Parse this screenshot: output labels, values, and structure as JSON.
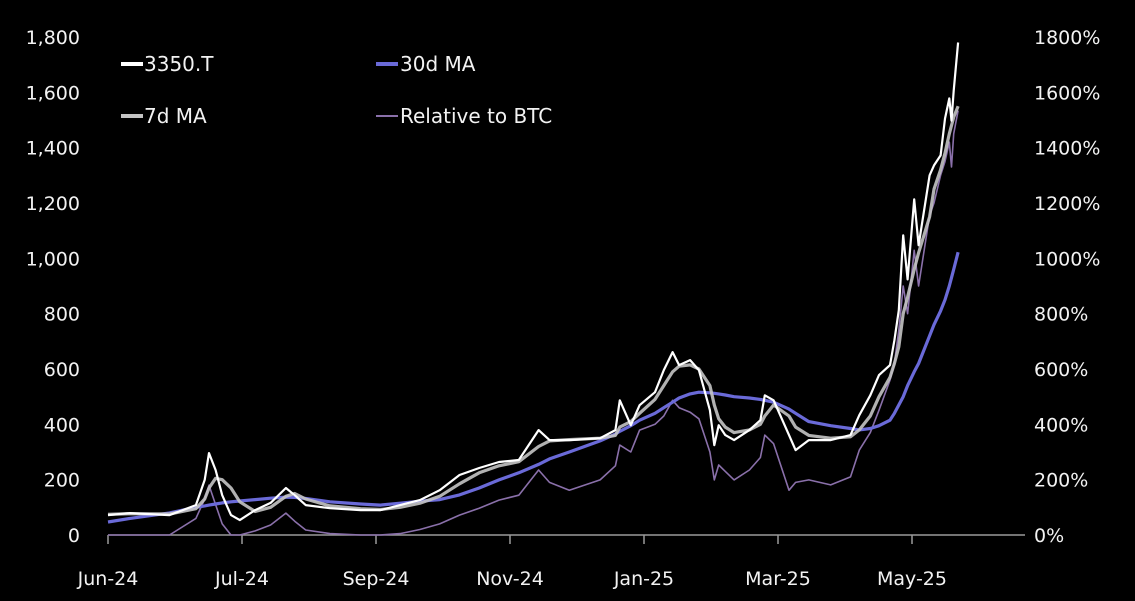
{
  "chart_data": {
    "type": "line",
    "title": "",
    "xlabel": "",
    "ylabel": "",
    "y_left": {
      "range": [
        0,
        1800
      ],
      "ticks": [
        "0",
        "200",
        "400",
        "600",
        "800",
        "1,000",
        "1,200",
        "1,400",
        "1,600",
        "1,800"
      ]
    },
    "y_right": {
      "range": [
        0,
        1800
      ],
      "unit": "%",
      "ticks": [
        "0%",
        "200%",
        "400%",
        "600%",
        "800%",
        "1000%",
        "1200%",
        "1400%",
        "1600%",
        "1800%"
      ]
    },
    "x_ticks": [
      "Jun-24",
      "Jul-24",
      "Sep-24",
      "Nov-24",
      "Jan-25",
      "Mar-25",
      "May-25"
    ],
    "grid": false,
    "legend_placement": "top-left",
    "x": [
      "2024-06-01",
      "2024-06-11",
      "2024-06-29",
      "2024-07-11",
      "2024-07-15",
      "2024-07-17",
      "2024-07-20",
      "2024-07-23",
      "2024-07-27",
      "2024-07-31",
      "2024-08-07",
      "2024-08-14",
      "2024-08-21",
      "2024-08-25",
      "2024-08-30",
      "2024-09-10",
      "2024-09-24",
      "2024-10-03",
      "2024-10-12",
      "2024-10-21",
      "2024-10-30",
      "2024-11-08",
      "2024-11-17",
      "2024-11-26",
      "2024-12-05",
      "2024-12-14",
      "2024-12-19",
      "2024-12-28",
      "2025-01-11",
      "2025-01-18",
      "2025-01-20",
      "2025-01-25",
      "2025-01-29",
      "2025-02-05",
      "2025-02-09",
      "2025-02-13",
      "2025-02-16",
      "2025-02-21",
      "2025-02-25",
      "2025-03-02",
      "2025-03-04",
      "2025-03-06",
      "2025-03-09",
      "2025-03-13",
      "2025-03-20",
      "2025-03-25",
      "2025-03-27",
      "2025-03-31",
      "2025-04-07",
      "2025-04-10",
      "2025-04-16",
      "2025-04-26",
      "2025-05-05",
      "2025-05-09",
      "2025-05-14",
      "2025-05-18",
      "2025-05-23",
      "2025-05-25",
      "2025-05-27",
      "2025-05-29",
      "2025-05-31",
      "2025-06-03",
      "2025-06-05",
      "2025-06-10",
      "2025-06-12",
      "2025-06-15",
      "2025-06-17",
      "2025-06-19",
      "2025-06-20",
      "2025-06-21",
      "2025-06-23"
    ],
    "series": [
      {
        "name": "3350.T",
        "axis": "left",
        "color": "#ffffff",
        "values": [
          72,
          79,
          72,
          108,
          199,
          296,
          235,
          144,
          72,
          54,
          90,
          116,
          170,
          144,
          108,
          97,
          90,
          90,
          108,
          126,
          162,
          217,
          242,
          264,
          271,
          379,
          343,
          343,
          350,
          379,
          487,
          397,
          469,
          516,
          596,
          661,
          614,
          632,
          596,
          451,
          325,
          397,
          361,
          343,
          379,
          415,
          505,
          487,
          361,
          307,
          343,
          343,
          361,
          433,
          505,
          578,
          614,
          704,
          812,
          1083,
          924,
          1213,
          1047,
          1300,
          1336,
          1372,
          1505,
          1578,
          1498,
          1606,
          1780
        ]
      },
      {
        "name": "7d MA",
        "axis": "left",
        "color": "#c4c4c4",
        "values": [
          75,
          77,
          76,
          95,
          130,
          170,
          205,
          200,
          170,
          120,
          85,
          100,
          140,
          150,
          130,
          105,
          95,
          92,
          100,
          115,
          140,
          185,
          225,
          250,
          265,
          320,
          340,
          345,
          350,
          360,
          390,
          410,
          440,
          490,
          540,
          590,
          610,
          615,
          600,
          540,
          470,
          420,
          390,
          370,
          380,
          400,
          430,
          470,
          430,
          390,
          360,
          350,
          355,
          380,
          430,
          500,
          570,
          620,
          680,
          800,
          860,
          960,
          1020,
          1150,
          1250,
          1320,
          1380,
          1450,
          1480,
          1510,
          1550
        ]
      },
      {
        "name": "30d MA",
        "axis": "left",
        "color": "#6a6ad8",
        "values": [
          47,
          60,
          80,
          100,
          105,
          108,
          112,
          116,
          120,
          123,
          128,
          133,
          137,
          136,
          132,
          120,
          112,
          108,
          115,
          122,
          128,
          145,
          170,
          199,
          225,
          255,
          275,
          300,
          340,
          365,
          375,
          395,
          415,
          440,
          460,
          480,
          495,
          510,
          516,
          514,
          512,
          510,
          506,
          500,
          495,
          490,
          487,
          480,
          455,
          440,
          410,
          395,
          385,
          380,
          385,
          395,
          415,
          440,
          470,
          500,
          540,
          590,
          620,
          720,
          760,
          810,
          850,
          900,
          930,
          960,
          1022
        ]
      },
      {
        "name": "Relative to BTC",
        "axis": "right",
        "color": "#8a70aa",
        "values": [
          0,
          0,
          0,
          60,
          130,
          180,
          110,
          40,
          0,
          0,
          15,
          36,
          79,
          50,
          18,
          5,
          0,
          0,
          5,
          20,
          40,
          72,
          97,
          126,
          144,
          235,
          190,
          162,
          199,
          250,
          325,
          300,
          379,
          400,
          430,
          487,
          460,
          444,
          420,
          300,
          199,
          253,
          230,
          199,
          235,
          280,
          361,
          330,
          162,
          190,
          199,
          181,
          210,
          307,
          370,
          451,
          560,
          620,
          740,
          900,
          800,
          1029,
          900,
          1155,
          1200,
          1300,
          1350,
          1420,
          1330,
          1450,
          1534
        ]
      }
    ]
  }
}
